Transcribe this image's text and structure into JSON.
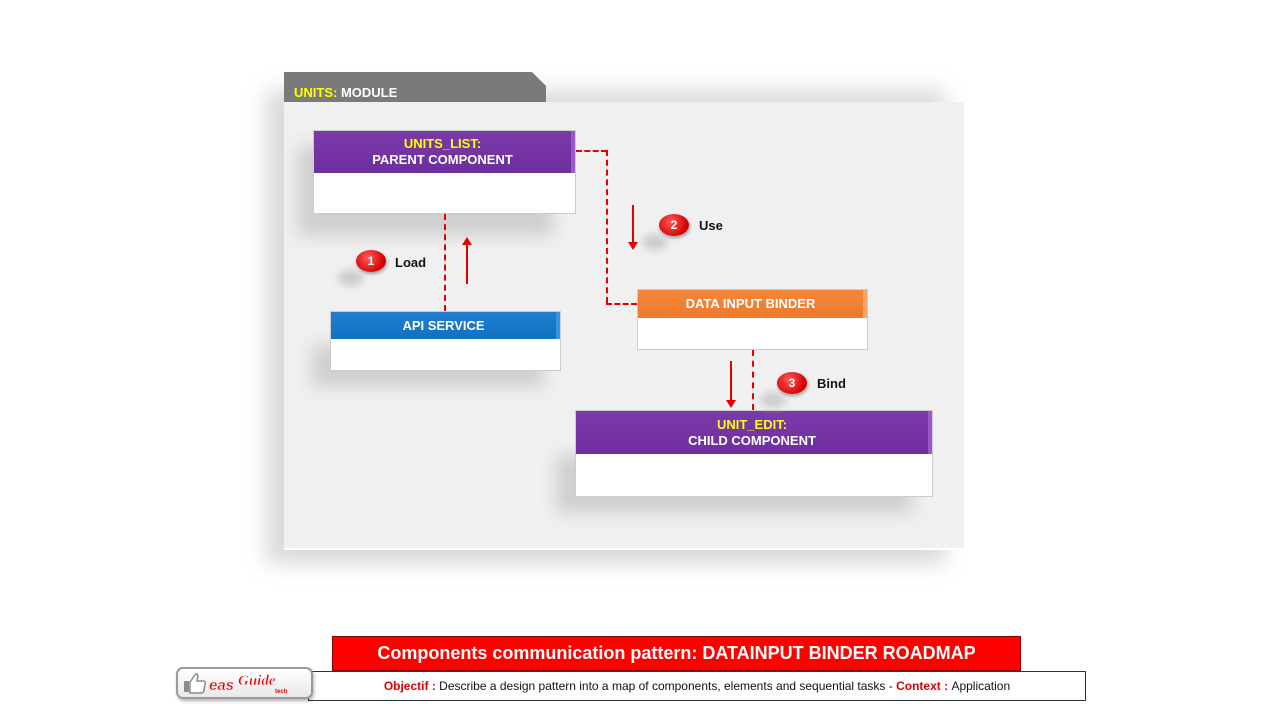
{
  "module": {
    "tab_prefix": "UNITS:",
    "tab_suffix": "MODULE"
  },
  "components": {
    "units_list": {
      "line1": "UNITS_LIST:",
      "line2": "PARENT COMPONENT"
    },
    "api_service": {
      "label": "API SERVICE"
    },
    "data_input_binder": {
      "label": "DATA INPUT BINDER"
    },
    "unit_edit": {
      "line1": "UNIT_EDIT:",
      "line2": "CHILD COMPONENT"
    }
  },
  "steps": [
    {
      "number": "1",
      "label": "Load"
    },
    {
      "number": "2",
      "label": "Use"
    },
    {
      "number": "3",
      "label": "Bind"
    }
  ],
  "footer": {
    "title": "Components communication pattern: DATAINPUT BINDER ROADMAP",
    "objective_label": "Objectif :",
    "objective_text": "Describe a design pattern into a map of components, elements and sequential tasks -",
    "context_label": "Context :",
    "context_text": "Application"
  },
  "logo": {
    "brand": "easyGuide",
    "sub": "tech"
  },
  "colors": {
    "module_tab": "#7a7a7a",
    "component_purple": "#7030a0",
    "component_blue": "#1370c0",
    "component_orange": "#ee7a2c",
    "connector_red": "#e60000",
    "banner_red": "#ff0000",
    "highlight_yellow": "#ffff00"
  }
}
